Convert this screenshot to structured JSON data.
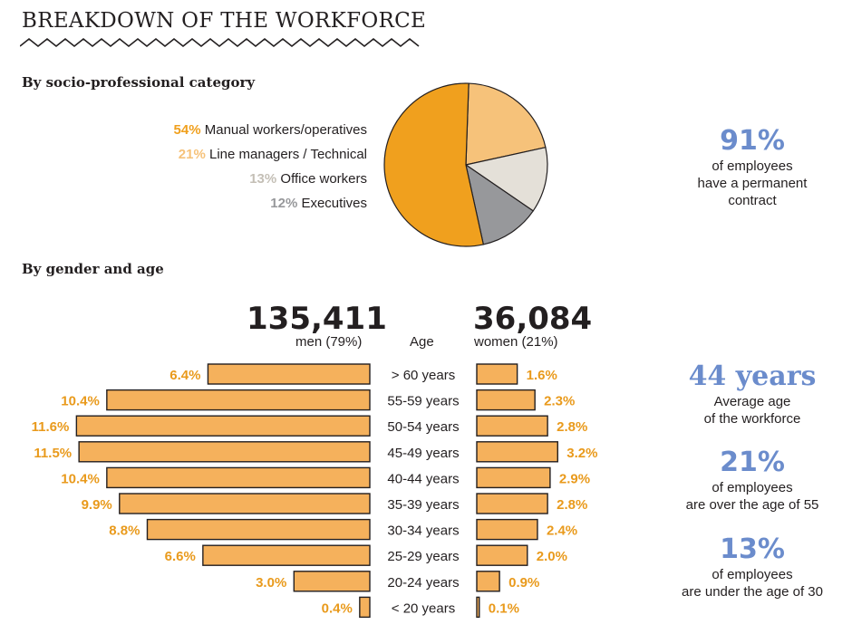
{
  "title": "BREAKDOWN OF THE WORKFORCE",
  "sections": {
    "category": "By socio-professional category",
    "gender_age": "By gender and age"
  },
  "stats": {
    "permanent": {
      "value": "91%",
      "line1": "of employees",
      "line2": "have a permanent",
      "line3": "contract"
    },
    "avg_age": {
      "value": "44 years",
      "line1": "Average age",
      "line2": "of the workforce"
    },
    "over55": {
      "value": "21%",
      "line1": "of employees",
      "line2": "are over the age of 55"
    },
    "under30": {
      "value": "13%",
      "line1": "of employees",
      "line2": "are under the age of 30"
    }
  },
  "pyramid_header": {
    "men_count": "135,411",
    "men_label": "men (79%)",
    "age_label": "Age",
    "women_count": "36,084",
    "women_label": "women (21%)"
  },
  "colors": {
    "orange": "#f0a01e",
    "light_orange": "#f6c27a",
    "light_gray": "#e4e0d8",
    "gray": "#97989b",
    "bar_fill": "#f5b15c",
    "label_orange": "#e99a1c",
    "blue": "#6b8ccc"
  },
  "chart_data": [
    {
      "type": "pie",
      "slices": [
        {
          "label": "Manual workers/operatives",
          "pct_text": "54%",
          "value": 54,
          "color": "#f0a01e"
        },
        {
          "label": "Line managers / Technical",
          "pct_text": "21%",
          "value": 21,
          "color": "#f6c27a"
        },
        {
          "label": "Office workers",
          "pct_text": "13%",
          "value": 13,
          "color": "#e4e0d8",
          "text_color": "#c4bfb6"
        },
        {
          "label": "Executives",
          "pct_text": "12%",
          "value": 12,
          "color": "#97989b"
        }
      ]
    },
    {
      "type": "bar",
      "orientation": "horizontal-pyramid",
      "categories": [
        "> 60 years",
        "55-59 years",
        "50-54 years",
        "45-49 years",
        "40-44 years",
        "35-39 years",
        "30-34 years",
        "25-29 years",
        "20-24 years",
        "< 20 years"
      ],
      "series": [
        {
          "name": "men (79%)",
          "values": [
            6.4,
            10.4,
            11.6,
            11.5,
            10.4,
            9.9,
            8.8,
            6.6,
            3.0,
            0.4
          ],
          "labels": [
            "6.4%",
            "10.4%",
            "11.6%",
            "11.5%",
            "10.4%",
            "9.9%",
            "8.8%",
            "6.6%",
            "3.0%",
            "0.4%"
          ]
        },
        {
          "name": "women (21%)",
          "values": [
            1.6,
            2.3,
            2.8,
            3.2,
            2.9,
            2.8,
            2.4,
            2.0,
            0.9,
            0.1
          ],
          "labels": [
            "1.6%",
            "2.3%",
            "2.8%",
            "3.2%",
            "2.9%",
            "2.8%",
            "2.4%",
            "2.0%",
            "0.9%",
            "0.1%"
          ]
        }
      ]
    }
  ]
}
